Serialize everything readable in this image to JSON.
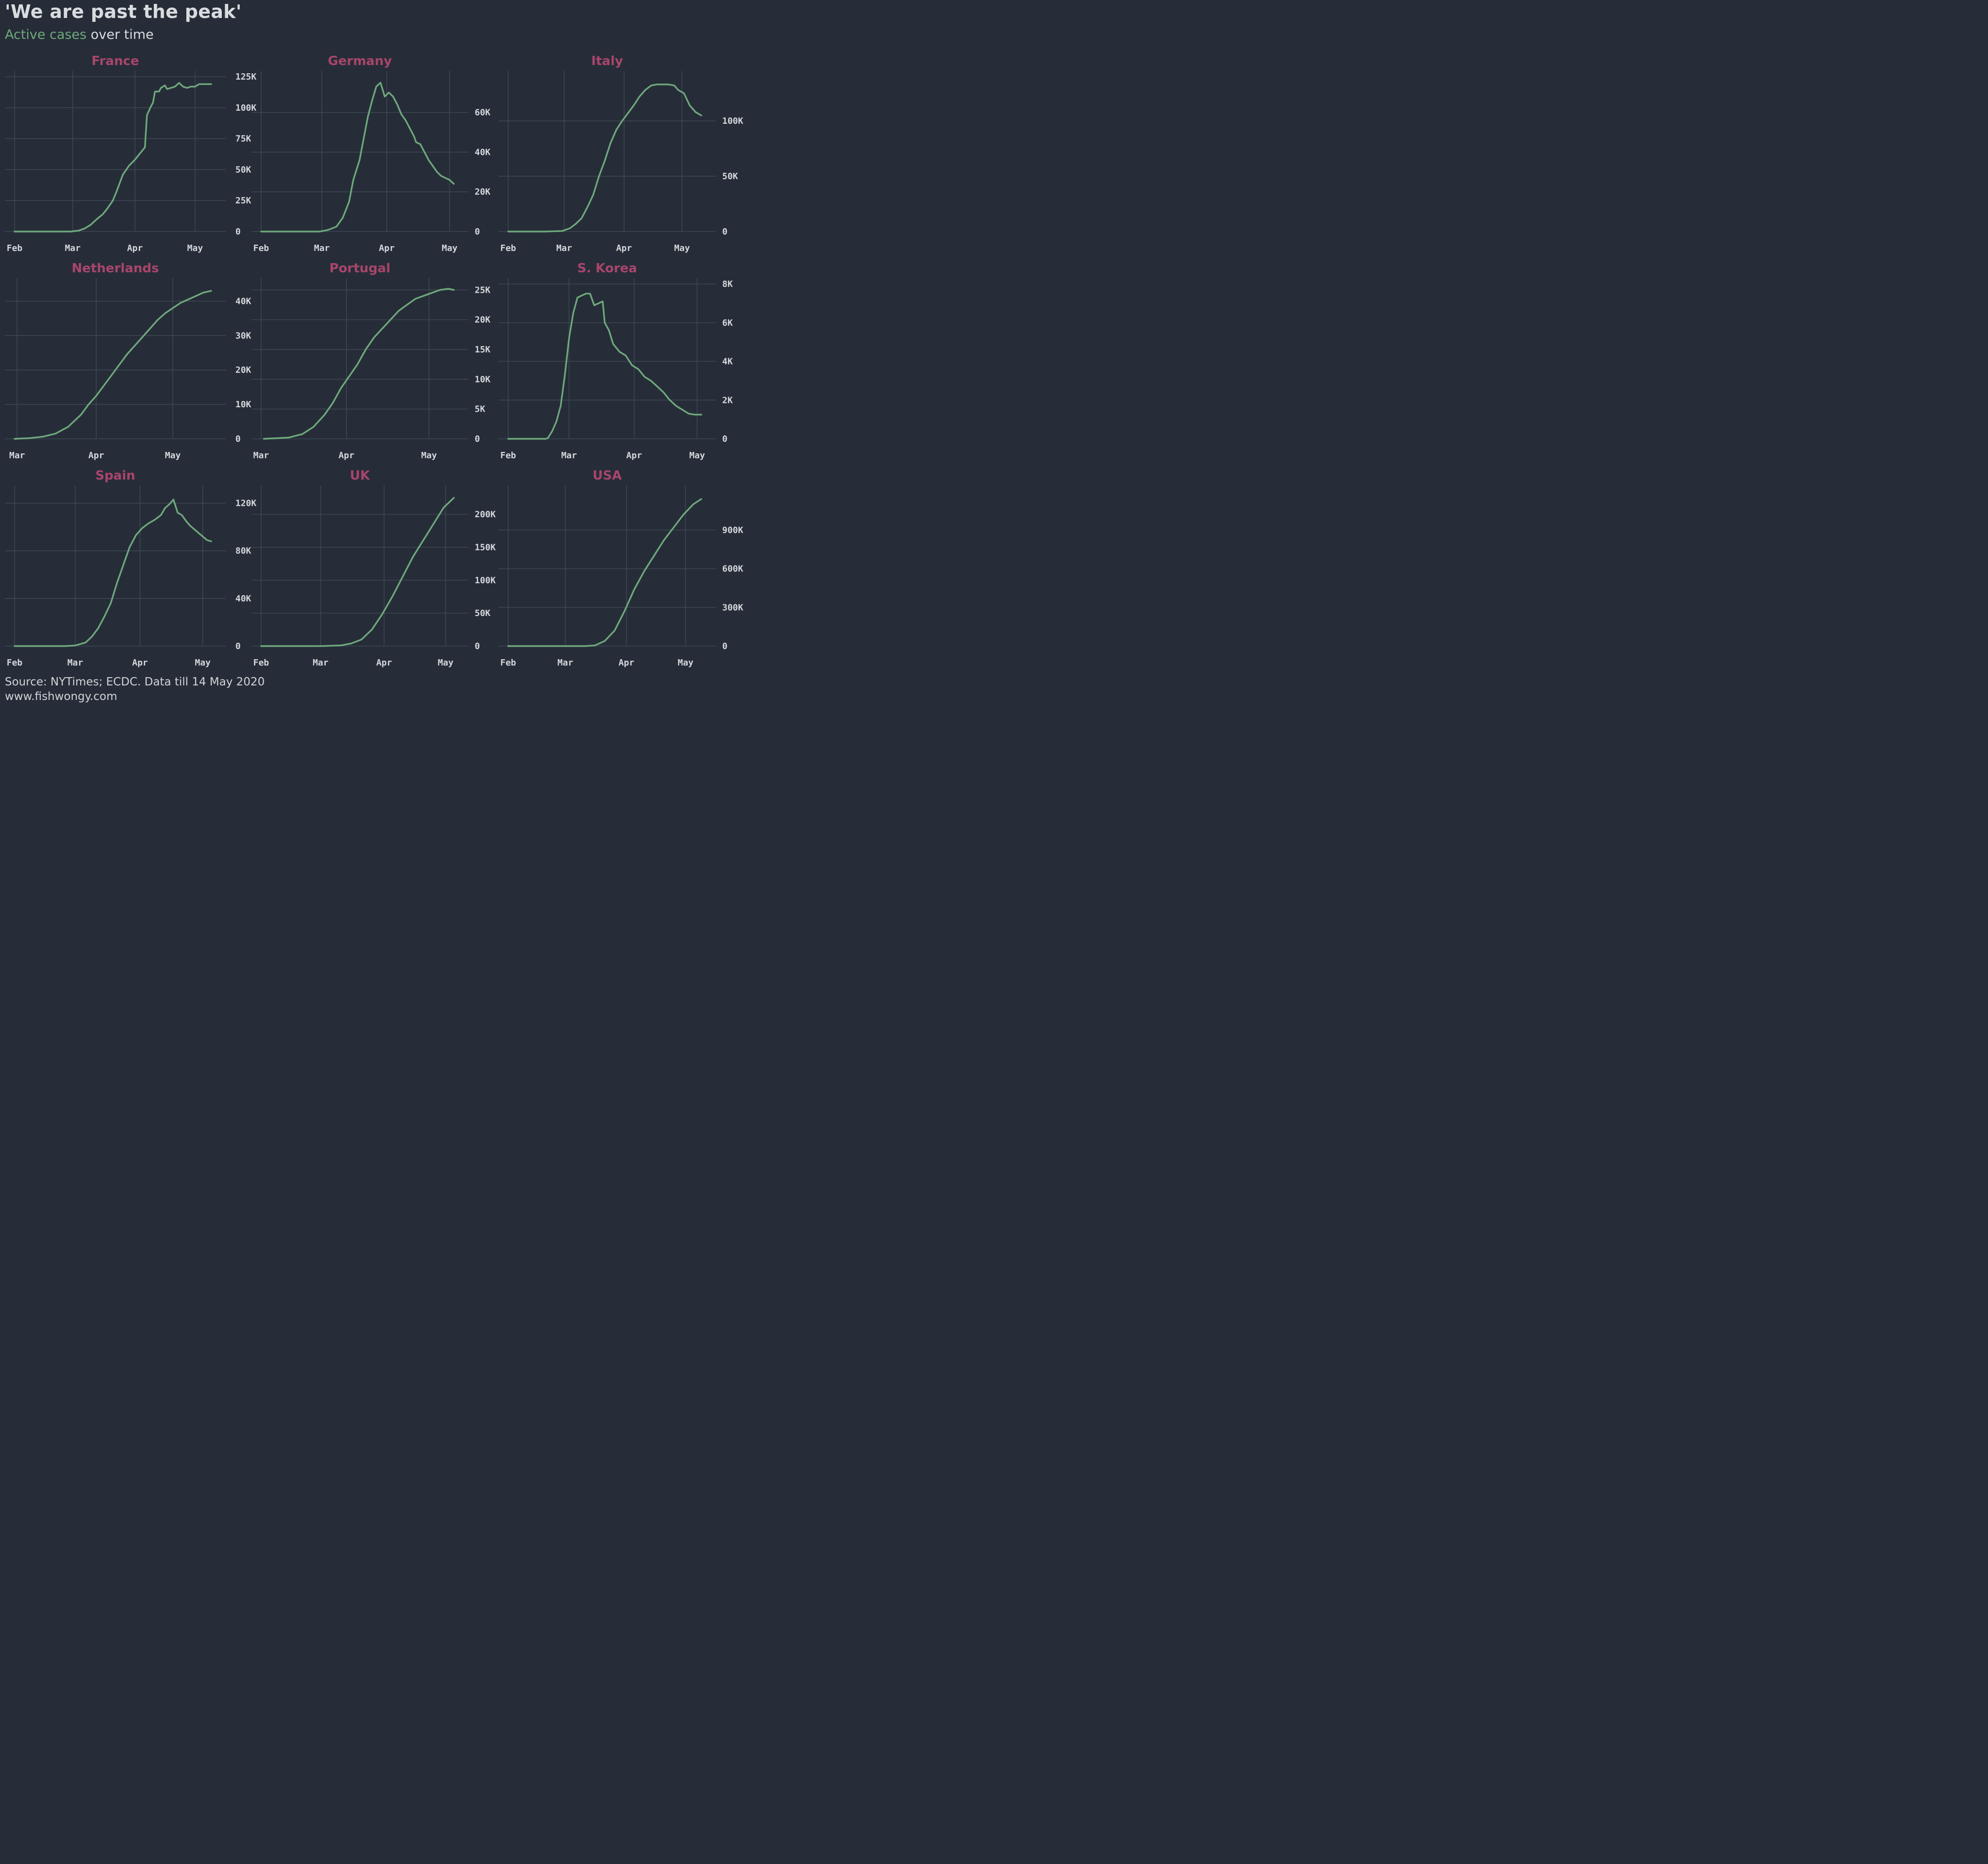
{
  "title": "'We are past the peak'",
  "subtitle": {
    "accent": "Active cases",
    "rest": " over time"
  },
  "source": [
    "Source: NYTimes; ECDC. Data till 14 May 2020",
    "www.fishwongy.com"
  ],
  "colors": {
    "background": "#262d38",
    "line": "#6fa87c",
    "panel_title": "#a8456b",
    "grid": "#3c4652",
    "text": "#d4d8dc"
  },
  "chart_data": [
    {
      "type": "line",
      "title": "France",
      "xlabels": [
        "Feb",
        "Mar",
        "Apr",
        "May"
      ],
      "ylim": [
        0,
        125000
      ],
      "yticks": [
        {
          "v": 0,
          "l": "0"
        },
        {
          "v": 25000,
          "l": "25K"
        },
        {
          "v": 50000,
          "l": "50K"
        },
        {
          "v": 75000,
          "l": "75K"
        },
        {
          "v": 100000,
          "l": "100K"
        },
        {
          "v": 125000,
          "l": "125K"
        }
      ],
      "points": [
        [
          1,
          0
        ],
        [
          20,
          0
        ],
        [
          29,
          0
        ],
        [
          33,
          800
        ],
        [
          36,
          2500
        ],
        [
          39,
          5500
        ],
        [
          42,
          10000
        ],
        [
          45,
          14000
        ],
        [
          47,
          18000
        ],
        [
          50,
          25000
        ],
        [
          52,
          33000
        ],
        [
          55,
          46000
        ],
        [
          58,
          53000
        ],
        [
          61,
          58000
        ],
        [
          64,
          64000
        ],
        [
          66,
          68000
        ],
        [
          67,
          94000
        ],
        [
          69,
          101000
        ],
        [
          70,
          104000
        ],
        [
          71,
          113000
        ],
        [
          73,
          113000
        ],
        [
          74,
          116000
        ],
        [
          76,
          118000
        ],
        [
          77,
          115000
        ],
        [
          79,
          116000
        ],
        [
          81,
          117000
        ],
        [
          83,
          120000
        ],
        [
          85,
          117000
        ],
        [
          87,
          116000
        ],
        [
          89,
          117000
        ],
        [
          91,
          117000
        ],
        [
          93,
          119000
        ],
        [
          95,
          119000
        ],
        [
          97,
          119000
        ],
        [
          99,
          119000
        ]
      ]
    },
    {
      "type": "line",
      "title": "Germany",
      "xlabels": [
        "Feb",
        "Mar",
        "Apr",
        "May"
      ],
      "ylim": [
        0,
        78000
      ],
      "yticks": [
        {
          "v": 0,
          "l": "0"
        },
        {
          "v": 20000,
          "l": "20K"
        },
        {
          "v": 40000,
          "l": "40K"
        },
        {
          "v": 60000,
          "l": "60K"
        }
      ],
      "points": [
        [
          1,
          0
        ],
        [
          29,
          0
        ],
        [
          33,
          800
        ],
        [
          37,
          2500
        ],
        [
          40,
          7000
        ],
        [
          43,
          15000
        ],
        [
          45,
          26000
        ],
        [
          48,
          36000
        ],
        [
          50,
          47000
        ],
        [
          52,
          58000
        ],
        [
          54,
          66000
        ],
        [
          56,
          73000
        ],
        [
          58,
          75000
        ],
        [
          60,
          68000
        ],
        [
          62,
          70000
        ],
        [
          64,
          68000
        ],
        [
          66,
          64000
        ],
        [
          68,
          59000
        ],
        [
          70,
          56000
        ],
        [
          72,
          52000
        ],
        [
          74,
          48000
        ],
        [
          75,
          45000
        ],
        [
          77,
          44000
        ],
        [
          79,
          40000
        ],
        [
          81,
          36000
        ],
        [
          83,
          33000
        ],
        [
          85,
          30000
        ],
        [
          87,
          28000
        ],
        [
          89,
          27000
        ],
        [
          91,
          26000
        ],
        [
          93,
          24000
        ]
      ]
    },
    {
      "type": "line",
      "title": "Italy",
      "xlabels": [
        "Feb",
        "Mar",
        "Apr",
        "May"
      ],
      "ylim": [
        0,
        140000
      ],
      "yticks": [
        {
          "v": 0,
          "l": "0"
        },
        {
          "v": 50000,
          "l": "50K"
        },
        {
          "v": 100000,
          "l": "100K"
        }
      ],
      "points": [
        [
          1,
          0
        ],
        [
          20,
          0
        ],
        [
          29,
          500
        ],
        [
          33,
          3000
        ],
        [
          36,
          7000
        ],
        [
          39,
          12000
        ],
        [
          42,
          22000
        ],
        [
          45,
          33000
        ],
        [
          48,
          50000
        ],
        [
          51,
          64000
        ],
        [
          54,
          80000
        ],
        [
          57,
          92000
        ],
        [
          60,
          100000
        ],
        [
          63,
          107000
        ],
        [
          66,
          114000
        ],
        [
          69,
          122000
        ],
        [
          72,
          128000
        ],
        [
          75,
          132000
        ],
        [
          78,
          133000
        ],
        [
          81,
          133000
        ],
        [
          84,
          133000
        ],
        [
          87,
          132000
        ],
        [
          89,
          128000
        ],
        [
          92,
          125000
        ],
        [
          95,
          114000
        ],
        [
          98,
          108000
        ],
        [
          101,
          105000
        ]
      ]
    },
    {
      "type": "line",
      "title": "Netherlands",
      "xlabels": [
        "Mar",
        "Apr",
        "May"
      ],
      "ylim": [
        0,
        45000
      ],
      "yticks": [
        {
          "v": 0,
          "l": "0"
        },
        {
          "v": 10000,
          "l": "10K"
        },
        {
          "v": 20000,
          "l": "20K"
        },
        {
          "v": 30000,
          "l": "30K"
        },
        {
          "v": 40000,
          "l": "40K"
        }
      ],
      "points": [
        [
          29,
          0
        ],
        [
          35,
          200
        ],
        [
          40,
          600
        ],
        [
          45,
          1500
        ],
        [
          50,
          3500
        ],
        [
          55,
          7000
        ],
        [
          58,
          10000
        ],
        [
          61,
          12500
        ],
        [
          64,
          15500
        ],
        [
          67,
          18500
        ],
        [
          70,
          21500
        ],
        [
          73,
          24500
        ],
        [
          76,
          27000
        ],
        [
          79,
          29500
        ],
        [
          82,
          32000
        ],
        [
          85,
          34500
        ],
        [
          88,
          36500
        ],
        [
          91,
          38000
        ],
        [
          94,
          39500
        ],
        [
          97,
          40500
        ],
        [
          100,
          41500
        ],
        [
          103,
          42500
        ],
        [
          106,
          43000
        ]
      ]
    },
    {
      "type": "line",
      "title": "Portugal",
      "xlabels": [
        "Mar",
        "Apr",
        "May"
      ],
      "ylim": [
        0,
        26000
      ],
      "yticks": [
        {
          "v": 0,
          "l": "0"
        },
        {
          "v": 5000,
          "l": "5K"
        },
        {
          "v": 10000,
          "l": "10K"
        },
        {
          "v": 15000,
          "l": "15K"
        },
        {
          "v": 20000,
          "l": "20K"
        },
        {
          "v": 25000,
          "l": "25K"
        }
      ],
      "points": [
        [
          31,
          0
        ],
        [
          40,
          200
        ],
        [
          45,
          800
        ],
        [
          49,
          2000
        ],
        [
          53,
          4000
        ],
        [
          56,
          6000
        ],
        [
          59,
          8500
        ],
        [
          62,
          10500
        ],
        [
          65,
          12500
        ],
        [
          68,
          15000
        ],
        [
          71,
          17000
        ],
        [
          74,
          18500
        ],
        [
          77,
          20000
        ],
        [
          80,
          21500
        ],
        [
          83,
          22500
        ],
        [
          86,
          23500
        ],
        [
          89,
          24000
        ],
        [
          92,
          24500
        ],
        [
          95,
          25000
        ],
        [
          98,
          25200
        ],
        [
          100,
          25000
        ]
      ]
    },
    {
      "type": "line",
      "title": "S. Korea",
      "xlabels": [
        "Feb",
        "Mar",
        "Apr",
        "May"
      ],
      "ylim": [
        0,
        8000
      ],
      "yticks": [
        {
          "v": 0,
          "l": "0"
        },
        {
          "v": 2000,
          "l": "2K"
        },
        {
          "v": 4000,
          "l": "4K"
        },
        {
          "v": 6000,
          "l": "6K"
        },
        {
          "v": 8000,
          "l": "8K"
        }
      ],
      "points": [
        [
          1,
          0
        ],
        [
          19,
          0
        ],
        [
          20,
          50
        ],
        [
          22,
          400
        ],
        [
          24,
          900
        ],
        [
          26,
          1700
        ],
        [
          28,
          3300
        ],
        [
          30,
          5200
        ],
        [
          32,
          6500
        ],
        [
          34,
          7300
        ],
        [
          36,
          7400
        ],
        [
          38,
          7500
        ],
        [
          40,
          7500
        ],
        [
          41,
          7200
        ],
        [
          42,
          6900
        ],
        [
          44,
          7000
        ],
        [
          46,
          7100
        ],
        [
          47,
          6000
        ],
        [
          49,
          5600
        ],
        [
          51,
          4900
        ],
        [
          54,
          4500
        ],
        [
          57,
          4300
        ],
        [
          60,
          3800
        ],
        [
          63,
          3600
        ],
        [
          66,
          3200
        ],
        [
          69,
          3000
        ],
        [
          72,
          2700
        ],
        [
          75,
          2400
        ],
        [
          78,
          2000
        ],
        [
          81,
          1700
        ],
        [
          84,
          1500
        ],
        [
          87,
          1300
        ],
        [
          90,
          1250
        ],
        [
          93,
          1250
        ]
      ]
    },
    {
      "type": "line",
      "title": "Spain",
      "xlabels": [
        "Feb",
        "Mar",
        "Apr",
        "May"
      ],
      "ylim": [
        0,
        130000
      ],
      "yticks": [
        {
          "v": 0,
          "l": "0"
        },
        {
          "v": 40000,
          "l": "40K"
        },
        {
          "v": 80000,
          "l": "80K"
        },
        {
          "v": 120000,
          "l": "120K"
        }
      ],
      "points": [
        [
          1,
          0
        ],
        [
          25,
          0
        ],
        [
          30,
          500
        ],
        [
          35,
          3000
        ],
        [
          38,
          8000
        ],
        [
          41,
          15000
        ],
        [
          44,
          25000
        ],
        [
          47,
          36000
        ],
        [
          50,
          53000
        ],
        [
          53,
          68000
        ],
        [
          56,
          83000
        ],
        [
          59,
          93000
        ],
        [
          62,
          99000
        ],
        [
          65,
          103000
        ],
        [
          68,
          106000
        ],
        [
          71,
          110000
        ],
        [
          73,
          116000
        ],
        [
          75,
          119000
        ],
        [
          77,
          123000
        ],
        [
          79,
          112000
        ],
        [
          81,
          110000
        ],
        [
          83,
          105000
        ],
        [
          85,
          101000
        ],
        [
          87,
          98000
        ],
        [
          89,
          95000
        ],
        [
          91,
          92000
        ],
        [
          93,
          89000
        ],
        [
          95,
          88000
        ]
      ]
    },
    {
      "type": "line",
      "title": "UK",
      "xlabels": [
        "Feb",
        "Mar",
        "Apr",
        "May"
      ],
      "ylim": [
        0,
        235000
      ],
      "yticks": [
        {
          "v": 0,
          "l": "0"
        },
        {
          "v": 50000,
          "l": "50K"
        },
        {
          "v": 100000,
          "l": "100K"
        },
        {
          "v": 150000,
          "l": "150K"
        },
        {
          "v": 200000,
          "l": "200K"
        }
      ],
      "points": [
        [
          1,
          0
        ],
        [
          30,
          0
        ],
        [
          40,
          1000
        ],
        [
          45,
          4000
        ],
        [
          50,
          10000
        ],
        [
          55,
          25000
        ],
        [
          60,
          48000
        ],
        [
          65,
          75000
        ],
        [
          70,
          105000
        ],
        [
          75,
          135000
        ],
        [
          80,
          160000
        ],
        [
          85,
          185000
        ],
        [
          90,
          210000
        ],
        [
          95,
          225000
        ]
      ]
    },
    {
      "type": "line",
      "title": "USA",
      "xlabels": [
        "Feb",
        "Mar",
        "Apr",
        "May"
      ],
      "ylim": [
        0,
        1200000
      ],
      "yticks": [
        {
          "v": 0,
          "l": "0"
        },
        {
          "v": 300000,
          "l": "300K"
        },
        {
          "v": 600000,
          "l": "600K"
        },
        {
          "v": 900000,
          "l": "900K"
        }
      ],
      "points": [
        [
          1,
          0
        ],
        [
          40,
          0
        ],
        [
          45,
          5000
        ],
        [
          50,
          40000
        ],
        [
          55,
          120000
        ],
        [
          60,
          270000
        ],
        [
          65,
          440000
        ],
        [
          70,
          580000
        ],
        [
          75,
          700000
        ],
        [
          80,
          820000
        ],
        [
          85,
          920000
        ],
        [
          90,
          1020000
        ],
        [
          95,
          1100000
        ],
        [
          99,
          1140000
        ]
      ]
    }
  ]
}
